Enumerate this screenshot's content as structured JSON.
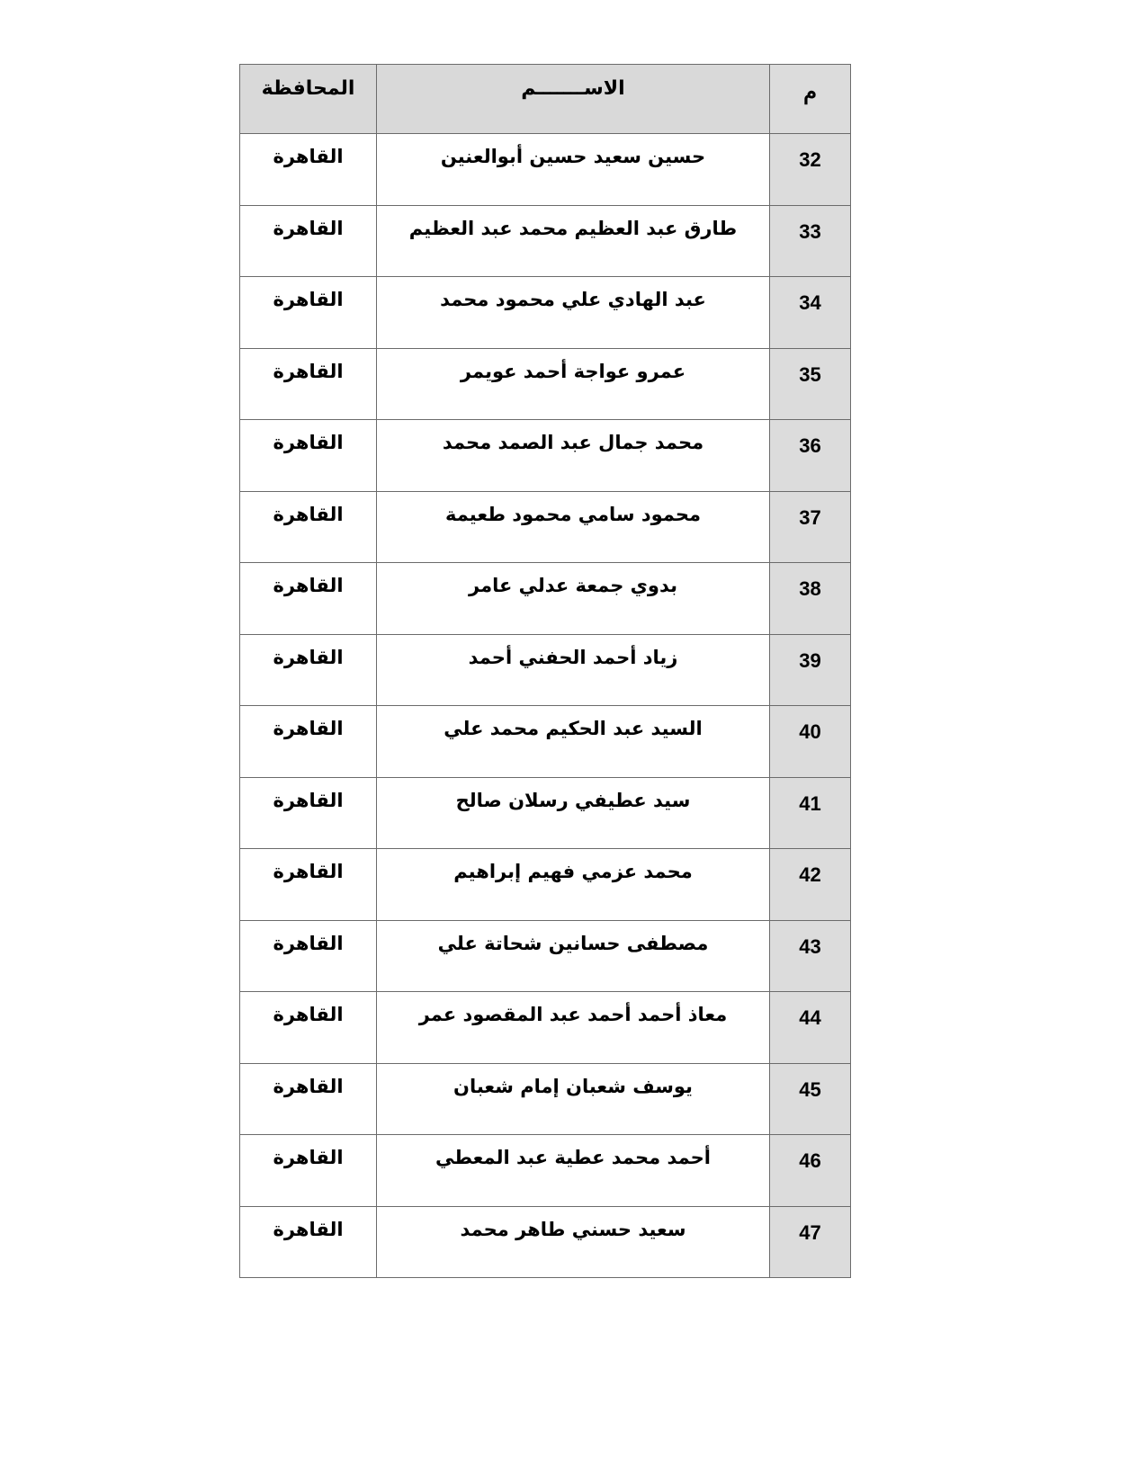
{
  "table": {
    "headers": {
      "number": "م",
      "name": "الاســـــــم",
      "governorate": "المحافظة"
    },
    "rows": [
      {
        "number": "32",
        "name": "حسين سعيد حسين أبوالعنين",
        "governorate": "القاهرة"
      },
      {
        "number": "33",
        "name": "طارق عبد العظيم محمد عبد العظيم",
        "governorate": "القاهرة"
      },
      {
        "number": "34",
        "name": "عبد الهادي علي محمود محمد",
        "governorate": "القاهرة"
      },
      {
        "number": "35",
        "name": "عمرو عواجة أحمد   عويمر",
        "governorate": "القاهرة"
      },
      {
        "number": "36",
        "name": "محمد جمال عبد الصمد محمد",
        "governorate": "القاهرة"
      },
      {
        "number": "37",
        "name": "محمود سامي محمود طعيمة",
        "governorate": "القاهرة"
      },
      {
        "number": "38",
        "name": "بدوي جمعة عدلي عامر",
        "governorate": "القاهرة"
      },
      {
        "number": "39",
        "name": "زياد أحمد الحفني أحمد",
        "governorate": "القاهرة"
      },
      {
        "number": "40",
        "name": "السيد عبد الحكيم محمد علي",
        "governorate": "القاهرة"
      },
      {
        "number": "41",
        "name": "سيد عطيفي رسلان صالح",
        "governorate": "القاهرة"
      },
      {
        "number": "42",
        "name": "محمد عزمي فهيم إبراهيم",
        "governorate": "القاهرة"
      },
      {
        "number": "43",
        "name": "مصطفى حسانين شحاتة علي",
        "governorate": "القاهرة"
      },
      {
        "number": "44",
        "name": "معاذ أحمد   أحمد   عبد المقصود عمر",
        "governorate": "القاهرة"
      },
      {
        "number": "45",
        "name": "يوسف شعبان إمام شعبان",
        "governorate": "القاهرة"
      },
      {
        "number": "46",
        "name": "أحمد   محمد عطية عبد المعطي",
        "governorate": "القاهرة"
      },
      {
        "number": "47",
        "name": "سعيد حسني طاهر محمد",
        "governorate": "القاهرة"
      }
    ]
  }
}
